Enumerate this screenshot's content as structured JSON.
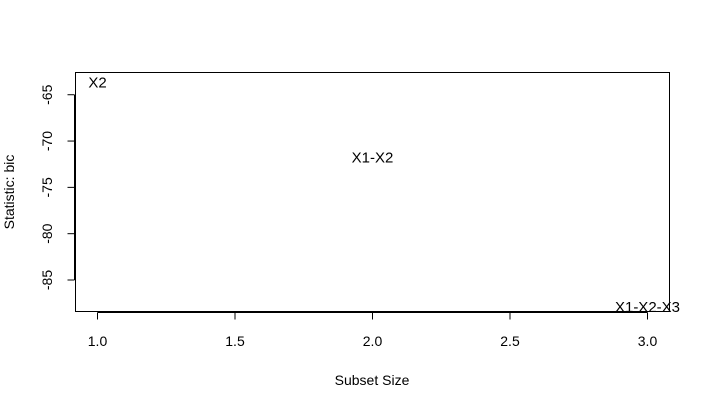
{
  "chart_data": {
    "type": "scatter",
    "title": "",
    "xlabel": "Subset Size",
    "ylabel": "Statistic: bic",
    "xlim": [
      0.92,
      3.08
    ],
    "ylim": [
      -88.4,
      -62.6
    ],
    "xticks": [
      1.0,
      1.5,
      2.0,
      2.5,
      3.0
    ],
    "xtick_labels": [
      "1.0",
      "1.5",
      "2.0",
      "2.5",
      "3.0"
    ],
    "yticks": [
      -65,
      -70,
      -75,
      -80,
      -85
    ],
    "ytick_labels": [
      "-65",
      "-70",
      "-75",
      "-80",
      "-85"
    ],
    "grid": false,
    "points": [
      {
        "label": "X2",
        "x": 1,
        "y": -63.8
      },
      {
        "label": "X1-X2",
        "x": 2,
        "y": -71.9
      },
      {
        "label": "X1-X2-X3",
        "x": 3,
        "y": -88.0
      }
    ]
  }
}
